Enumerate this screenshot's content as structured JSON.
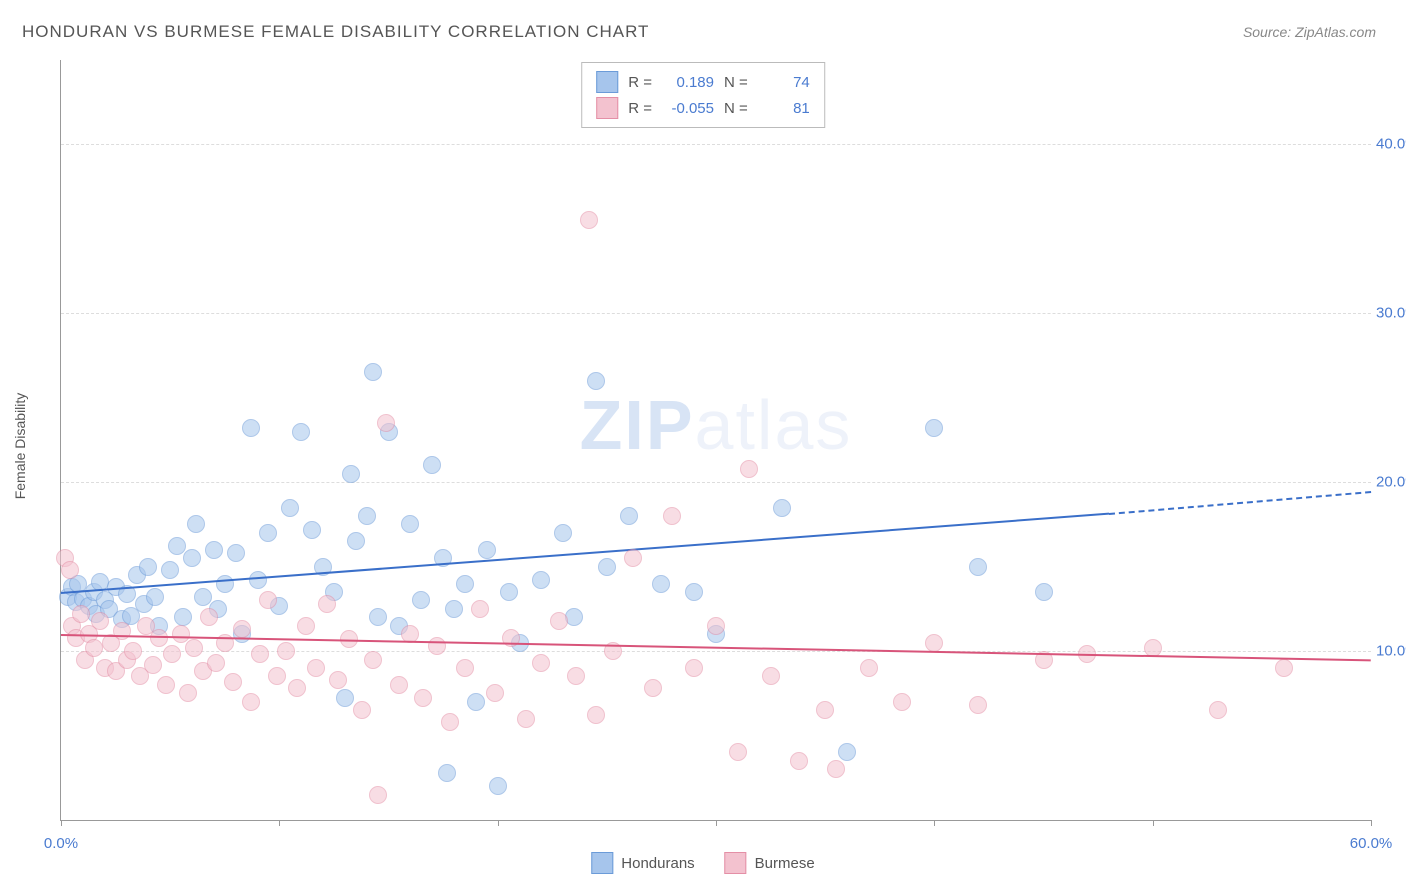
{
  "title": "HONDURAN VS BURMESE FEMALE DISABILITY CORRELATION CHART",
  "source": "Source: ZipAtlas.com",
  "ylabel": "Female Disability",
  "watermark_zip": "ZIP",
  "watermark_atlas": "atlas",
  "chart": {
    "type": "scatter",
    "xlim": [
      0,
      60
    ],
    "ylim": [
      0,
      45
    ],
    "xtick_positions": [
      0,
      10,
      20,
      30,
      40,
      50,
      60
    ],
    "xtick_labels": {
      "0": "0.0%",
      "60": "60.0%"
    },
    "ytick_positions": [
      10,
      20,
      30,
      40
    ],
    "ytick_labels": {
      "10": "10.0%",
      "20": "20.0%",
      "30": "30.0%",
      "40": "40.0%"
    },
    "background_color": "#ffffff",
    "grid_color": "#dddddd",
    "axis_color": "#999999",
    "label_color": "#4a7bd0",
    "marker_radius": 8,
    "marker_opacity": 0.55,
    "series": [
      {
        "name": "Hondurans",
        "color_fill": "#a6c5ec",
        "color_stroke": "#6b9bd8",
        "R": "0.189",
        "N": "74",
        "trend": {
          "x1": 0,
          "y1": 13.5,
          "x2": 48,
          "y2": 18.2,
          "dashed_to_x": 60,
          "dashed_to_y": 19.5,
          "color": "#3a6fc9",
          "width": 2
        },
        "points": [
          [
            0.3,
            13.2
          ],
          [
            0.5,
            13.8
          ],
          [
            0.7,
            12.9
          ],
          [
            0.8,
            14.0
          ],
          [
            1.0,
            13.1
          ],
          [
            1.3,
            12.7
          ],
          [
            1.5,
            13.5
          ],
          [
            1.6,
            12.2
          ],
          [
            1.8,
            14.1
          ],
          [
            2.0,
            13.0
          ],
          [
            2.2,
            12.5
          ],
          [
            2.5,
            13.8
          ],
          [
            2.8,
            11.9
          ],
          [
            3.0,
            13.4
          ],
          [
            3.2,
            12.1
          ],
          [
            3.5,
            14.5
          ],
          [
            3.8,
            12.8
          ],
          [
            4.0,
            15.0
          ],
          [
            4.3,
            13.2
          ],
          [
            4.5,
            11.5
          ],
          [
            5.0,
            14.8
          ],
          [
            5.3,
            16.2
          ],
          [
            5.6,
            12.0
          ],
          [
            6.0,
            15.5
          ],
          [
            6.2,
            17.5
          ],
          [
            6.5,
            13.2
          ],
          [
            7.0,
            16.0
          ],
          [
            7.2,
            12.5
          ],
          [
            7.5,
            14.0
          ],
          [
            8.0,
            15.8
          ],
          [
            8.3,
            11.0
          ],
          [
            8.7,
            23.2
          ],
          [
            9.0,
            14.2
          ],
          [
            9.5,
            17.0
          ],
          [
            10.0,
            12.7
          ],
          [
            10.5,
            18.5
          ],
          [
            11.0,
            23.0
          ],
          [
            11.5,
            17.2
          ],
          [
            12.0,
            15.0
          ],
          [
            12.5,
            13.5
          ],
          [
            13.0,
            7.2
          ],
          [
            13.3,
            20.5
          ],
          [
            13.5,
            16.5
          ],
          [
            14.0,
            18.0
          ],
          [
            14.3,
            26.5
          ],
          [
            14.5,
            12.0
          ],
          [
            15.0,
            23.0
          ],
          [
            15.5,
            11.5
          ],
          [
            16.0,
            17.5
          ],
          [
            16.5,
            13.0
          ],
          [
            17.0,
            21.0
          ],
          [
            17.5,
            15.5
          ],
          [
            17.7,
            2.8
          ],
          [
            18.0,
            12.5
          ],
          [
            18.5,
            14.0
          ],
          [
            19.0,
            7.0
          ],
          [
            19.5,
            16.0
          ],
          [
            20.0,
            2.0
          ],
          [
            20.5,
            13.5
          ],
          [
            21.0,
            10.5
          ],
          [
            22.0,
            14.2
          ],
          [
            23.0,
            17.0
          ],
          [
            23.5,
            12.0
          ],
          [
            24.5,
            26.0
          ],
          [
            25.0,
            15.0
          ],
          [
            26.0,
            18.0
          ],
          [
            27.5,
            14.0
          ],
          [
            29.0,
            13.5
          ],
          [
            30.0,
            11.0
          ],
          [
            33.0,
            18.5
          ],
          [
            36.0,
            4.0
          ],
          [
            40.0,
            23.2
          ],
          [
            42.0,
            15.0
          ],
          [
            45.0,
            13.5
          ]
        ]
      },
      {
        "name": "Burmese",
        "color_fill": "#f3c2cf",
        "color_stroke": "#e48fa6",
        "R": "-0.055",
        "N": "81",
        "trend": {
          "x1": 0,
          "y1": 11.0,
          "x2": 60,
          "y2": 9.5,
          "color": "#d8547a",
          "width": 2
        },
        "points": [
          [
            0.2,
            15.5
          ],
          [
            0.4,
            14.8
          ],
          [
            0.5,
            11.5
          ],
          [
            0.7,
            10.8
          ],
          [
            0.9,
            12.2
          ],
          [
            1.1,
            9.5
          ],
          [
            1.3,
            11.0
          ],
          [
            1.5,
            10.2
          ],
          [
            1.8,
            11.8
          ],
          [
            2.0,
            9.0
          ],
          [
            2.3,
            10.5
          ],
          [
            2.5,
            8.8
          ],
          [
            2.8,
            11.2
          ],
          [
            3.0,
            9.5
          ],
          [
            3.3,
            10.0
          ],
          [
            3.6,
            8.5
          ],
          [
            3.9,
            11.5
          ],
          [
            4.2,
            9.2
          ],
          [
            4.5,
            10.8
          ],
          [
            4.8,
            8.0
          ],
          [
            5.1,
            9.8
          ],
          [
            5.5,
            11.0
          ],
          [
            5.8,
            7.5
          ],
          [
            6.1,
            10.2
          ],
          [
            6.5,
            8.8
          ],
          [
            6.8,
            12.0
          ],
          [
            7.1,
            9.3
          ],
          [
            7.5,
            10.5
          ],
          [
            7.9,
            8.2
          ],
          [
            8.3,
            11.3
          ],
          [
            8.7,
            7.0
          ],
          [
            9.1,
            9.8
          ],
          [
            9.5,
            13.0
          ],
          [
            9.9,
            8.5
          ],
          [
            10.3,
            10.0
          ],
          [
            10.8,
            7.8
          ],
          [
            11.2,
            11.5
          ],
          [
            11.7,
            9.0
          ],
          [
            12.2,
            12.8
          ],
          [
            12.7,
            8.3
          ],
          [
            13.2,
            10.7
          ],
          [
            13.8,
            6.5
          ],
          [
            14.3,
            9.5
          ],
          [
            14.5,
            1.5
          ],
          [
            14.9,
            23.5
          ],
          [
            15.5,
            8.0
          ],
          [
            16.0,
            11.0
          ],
          [
            16.6,
            7.2
          ],
          [
            17.2,
            10.3
          ],
          [
            17.8,
            5.8
          ],
          [
            18.5,
            9.0
          ],
          [
            19.2,
            12.5
          ],
          [
            19.9,
            7.5
          ],
          [
            20.6,
            10.8
          ],
          [
            21.3,
            6.0
          ],
          [
            22.0,
            9.3
          ],
          [
            22.8,
            11.8
          ],
          [
            23.6,
            8.5
          ],
          [
            24.2,
            35.5
          ],
          [
            24.5,
            6.2
          ],
          [
            25.3,
            10.0
          ],
          [
            26.2,
            15.5
          ],
          [
            27.1,
            7.8
          ],
          [
            28.0,
            18.0
          ],
          [
            29.0,
            9.0
          ],
          [
            30.0,
            11.5
          ],
          [
            31.0,
            4.0
          ],
          [
            31.5,
            20.8
          ],
          [
            32.5,
            8.5
          ],
          [
            33.8,
            3.5
          ],
          [
            35.0,
            6.5
          ],
          [
            35.5,
            3.0
          ],
          [
            37.0,
            9.0
          ],
          [
            38.5,
            7.0
          ],
          [
            40.0,
            10.5
          ],
          [
            42.0,
            6.8
          ],
          [
            45.0,
            9.5
          ],
          [
            47.0,
            9.8
          ],
          [
            50.0,
            10.2
          ],
          [
            53.0,
            6.5
          ],
          [
            56.0,
            9.0
          ]
        ]
      }
    ]
  },
  "stats_labels": {
    "R": "R =",
    "N": "N ="
  },
  "legend": {
    "s1": "Hondurans",
    "s2": "Burmese"
  }
}
